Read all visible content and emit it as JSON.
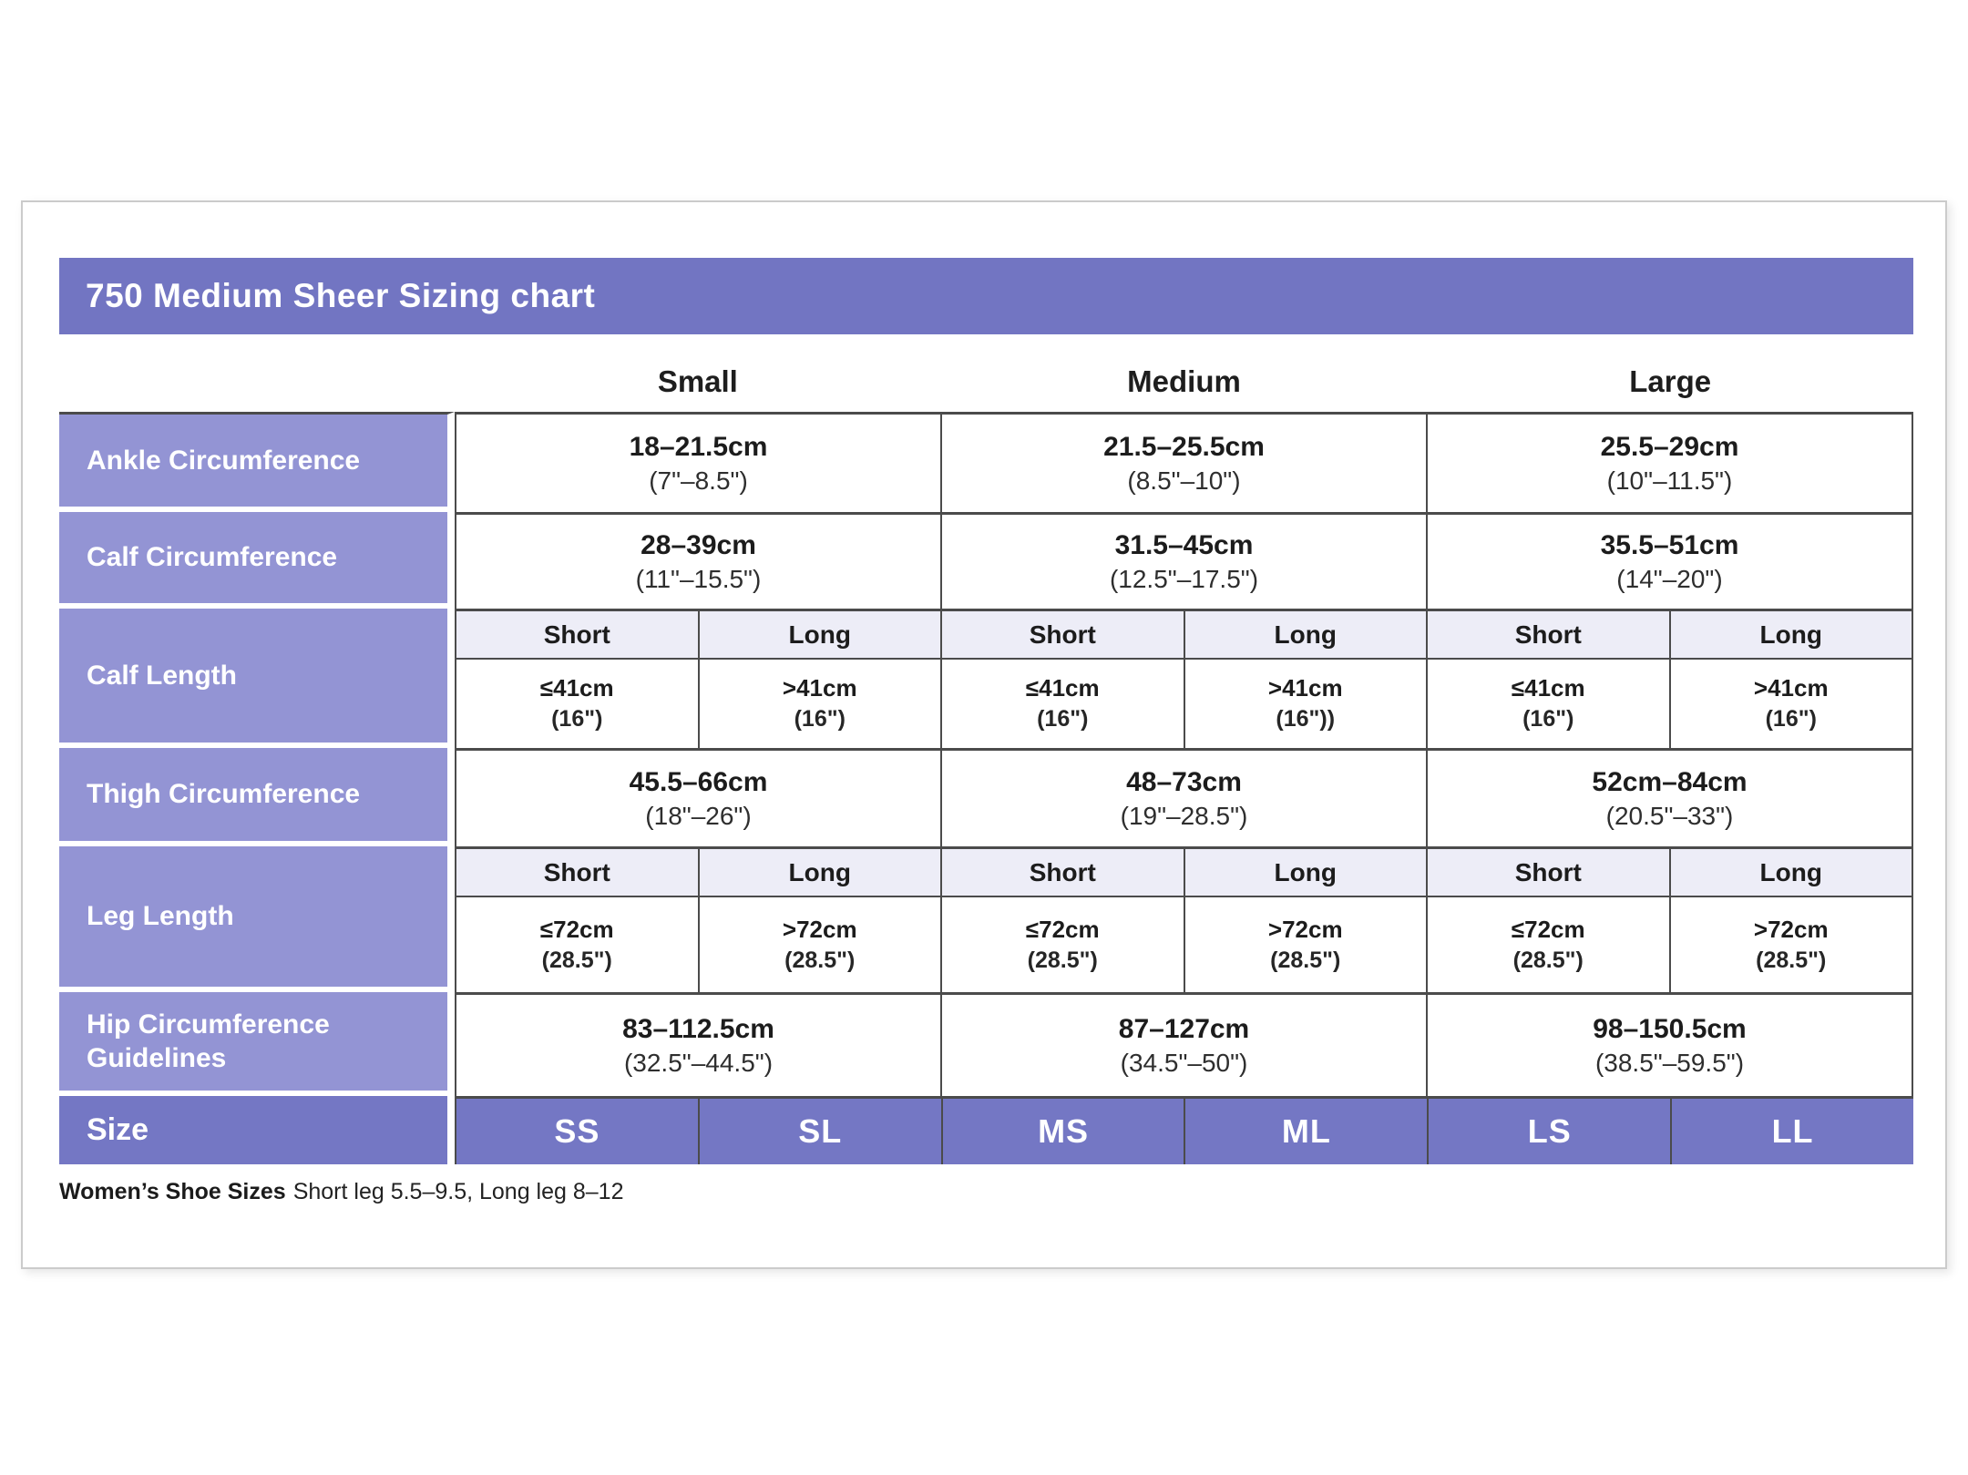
{
  "colors": {
    "title_bar": "#7275c2",
    "row_label": "#9394d4",
    "size_fill": "#7477c4",
    "band_fill": "#ededf7",
    "border_dark": "#4b4b4b"
  },
  "chart_data": {
    "type": "table",
    "title": "750 Medium Sheer Sizing chart",
    "columns": [
      "Small",
      "Medium",
      "Large"
    ],
    "rows": [
      {
        "label": "Ankle Circumference",
        "type": "merged",
        "cells": [
          {
            "cm": "18–21.5cm",
            "in": "(7\"–8.5\")"
          },
          {
            "cm": "21.5–25.5cm",
            "in": "(8.5\"–10\")"
          },
          {
            "cm": "25.5–29cm",
            "in": "(10\"–11.5\")"
          }
        ]
      },
      {
        "label": "Calf Circumference",
        "type": "merged",
        "cells": [
          {
            "cm": "28–39cm",
            "in": "(11\"–15.5\")"
          },
          {
            "cm": "31.5–45cm",
            "in": "(12.5\"–17.5\")"
          },
          {
            "cm": "35.5–51cm",
            "in": "(14\"–20\")"
          }
        ]
      },
      {
        "label": "Calf Length",
        "type": "split",
        "subheaders": [
          "Short",
          "Long",
          "Short",
          "Long",
          "Short",
          "Long"
        ],
        "cells": [
          {
            "cm": "≤41cm",
            "in": "(16\")"
          },
          {
            "cm": ">41cm",
            "in": "(16\")"
          },
          {
            "cm": "≤41cm",
            "in": "(16\")"
          },
          {
            "cm": ">41cm",
            "in": "(16\"))"
          },
          {
            "cm": "≤41cm",
            "in": "(16\")"
          },
          {
            "cm": ">41cm",
            "in": "(16\")"
          }
        ]
      },
      {
        "label": "Thigh Circumference",
        "type": "merged",
        "cells": [
          {
            "cm": "45.5–66cm",
            "in": "(18\"–26\")"
          },
          {
            "cm": "48–73cm",
            "in": "(19\"–28.5\")"
          },
          {
            "cm": "52cm–84cm",
            "in": "(20.5\"–33\")"
          }
        ]
      },
      {
        "label": "Leg Length",
        "type": "split",
        "subheaders": [
          "Short",
          "Long",
          "Short",
          "Long",
          "Short",
          "Long"
        ],
        "cells": [
          {
            "cm": "≤72cm",
            "in": "(28.5\")"
          },
          {
            "cm": ">72cm",
            "in": "(28.5\")"
          },
          {
            "cm": "≤72cm",
            "in": "(28.5\")"
          },
          {
            "cm": ">72cm",
            "in": "(28.5\")"
          },
          {
            "cm": "≤72cm",
            "in": "(28.5\")"
          },
          {
            "cm": ">72cm",
            "in": "(28.5\")"
          }
        ]
      },
      {
        "label": "Hip Circumference Guidelines",
        "type": "merged",
        "cells": [
          {
            "cm": "83–112.5cm",
            "in": "(32.5\"–44.5\")"
          },
          {
            "cm": "87–127cm",
            "in": "(34.5\"–50\")"
          },
          {
            "cm": "98–150.5cm",
            "in": "(38.5\"–59.5\")"
          }
        ]
      },
      {
        "label": "Size",
        "type": "size",
        "values": [
          "SS",
          "SL",
          "MS",
          "ML",
          "LS",
          "LL"
        ]
      }
    ],
    "footnote": {
      "bold": "Women’s Shoe Sizes",
      "text": "Short leg 5.5–9.5, Long leg 8–12"
    }
  }
}
